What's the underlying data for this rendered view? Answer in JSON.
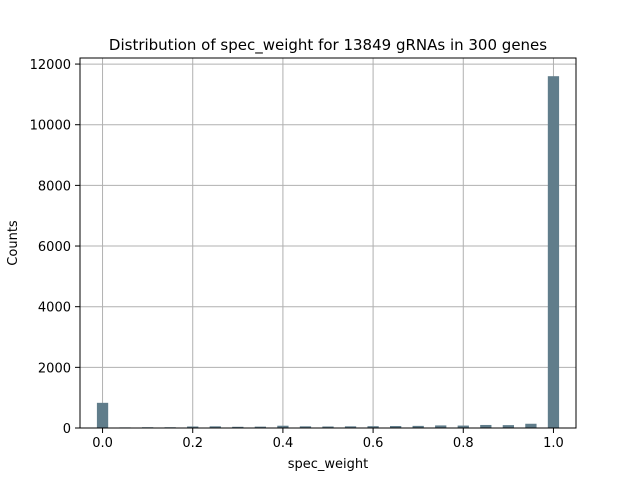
{
  "chart_data": {
    "type": "bar",
    "title": "Distribution of spec_weight for 13849 gRNAs in 300 genes",
    "xlabel": "spec_weight",
    "ylabel": "Counts",
    "xlim": [
      -0.05,
      1.05
    ],
    "ylim": [
      0,
      12200
    ],
    "x_ticks": [
      0.0,
      0.2,
      0.4,
      0.6,
      0.8,
      1.0
    ],
    "x_tick_labels": [
      "0.0",
      "0.2",
      "0.4",
      "0.6",
      "0.8",
      "1.0"
    ],
    "y_ticks": [
      0,
      2000,
      4000,
      6000,
      8000,
      10000,
      12000
    ],
    "y_tick_labels": [
      "0",
      "2000",
      "4000",
      "6000",
      "8000",
      "10000",
      "12000"
    ],
    "grid": true,
    "bar_color": "#607d8b",
    "bin_width": 0.025,
    "series": [
      {
        "x": [
          0.0,
          0.05,
          0.1,
          0.15,
          0.2,
          0.25,
          0.3,
          0.35,
          0.4,
          0.45,
          0.5,
          0.55,
          0.6,
          0.65,
          0.7,
          0.75,
          0.8,
          0.85,
          0.9,
          0.95,
          1.0
        ],
        "values": [
          830,
          20,
          25,
          25,
          50,
          55,
          40,
          45,
          75,
          55,
          50,
          55,
          60,
          65,
          70,
          85,
          80,
          100,
          95,
          140,
          11600
        ]
      }
    ]
  }
}
